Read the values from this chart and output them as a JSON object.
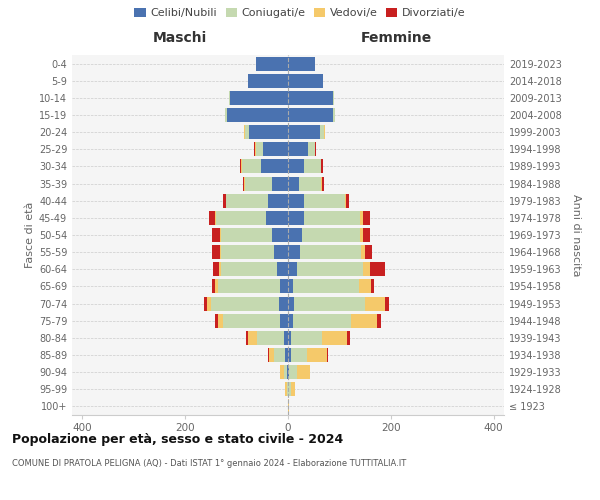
{
  "age_groups": [
    "100+",
    "95-99",
    "90-94",
    "85-89",
    "80-84",
    "75-79",
    "70-74",
    "65-69",
    "60-64",
    "55-59",
    "50-54",
    "45-49",
    "40-44",
    "35-39",
    "30-34",
    "25-29",
    "20-24",
    "15-19",
    "10-14",
    "5-9",
    "0-4"
  ],
  "birth_years": [
    "≤ 1923",
    "1924-1928",
    "1929-1933",
    "1934-1938",
    "1939-1943",
    "1944-1948",
    "1949-1953",
    "1954-1958",
    "1959-1963",
    "1964-1968",
    "1969-1973",
    "1974-1978",
    "1979-1983",
    "1984-1988",
    "1989-1993",
    "1994-1998",
    "1999-2003",
    "2004-2008",
    "2009-2013",
    "2014-2018",
    "2019-2023"
  ],
  "maschi": {
    "celibi": [
      0,
      0,
      2,
      5,
      8,
      15,
      18,
      15,
      22,
      28,
      32,
      42,
      38,
      32,
      52,
      48,
      75,
      118,
      112,
      78,
      62
    ],
    "coniugati": [
      0,
      2,
      5,
      22,
      52,
      112,
      132,
      122,
      108,
      102,
      98,
      98,
      82,
      52,
      38,
      14,
      8,
      4,
      2,
      0,
      0
    ],
    "vedovi": [
      0,
      3,
      8,
      10,
      18,
      10,
      8,
      5,
      4,
      3,
      3,
      2,
      1,
      1,
      1,
      2,
      2,
      0,
      0,
      0,
      0
    ],
    "divorziati": [
      0,
      0,
      0,
      2,
      3,
      5,
      5,
      5,
      12,
      15,
      14,
      12,
      5,
      3,
      2,
      2,
      1,
      0,
      0,
      0,
      0
    ]
  },
  "femmine": {
    "nubili": [
      0,
      0,
      2,
      5,
      5,
      10,
      12,
      10,
      18,
      24,
      28,
      32,
      32,
      22,
      32,
      38,
      62,
      88,
      88,
      68,
      52
    ],
    "coniugate": [
      0,
      5,
      15,
      32,
      62,
      112,
      138,
      128,
      128,
      118,
      112,
      108,
      78,
      42,
      32,
      14,
      8,
      4,
      2,
      0,
      0
    ],
    "vedove": [
      2,
      8,
      25,
      38,
      48,
      52,
      38,
      24,
      14,
      8,
      5,
      5,
      3,
      2,
      1,
      1,
      1,
      0,
      0,
      0,
      0
    ],
    "divorziate": [
      0,
      0,
      1,
      3,
      5,
      6,
      8,
      5,
      28,
      14,
      14,
      14,
      5,
      4,
      4,
      2,
      1,
      0,
      0,
      0,
      0
    ]
  },
  "colors": {
    "celibi_nubili": "#4a72b0",
    "coniugati": "#c5d9b0",
    "vedovi": "#f5c96a",
    "divorziati": "#c82020"
  },
  "xlim": 420,
  "title": "Popolazione per età, sesso e stato civile - 2024",
  "subtitle": "COMUNE DI PRATOLA PELIGNA (AQ) - Dati ISTAT 1° gennaio 2024 - Elaborazione TUTTITALIA.IT",
  "ylabel_left": "Fasce di età",
  "ylabel_right": "Anni di nascita",
  "xlabel_left": "Maschi",
  "xlabel_right": "Femmine",
  "legend_labels": [
    "Celibi/Nubili",
    "Coniugati/e",
    "Vedovi/e",
    "Divorziati/e"
  ],
  "background_color": "#f5f5f5"
}
